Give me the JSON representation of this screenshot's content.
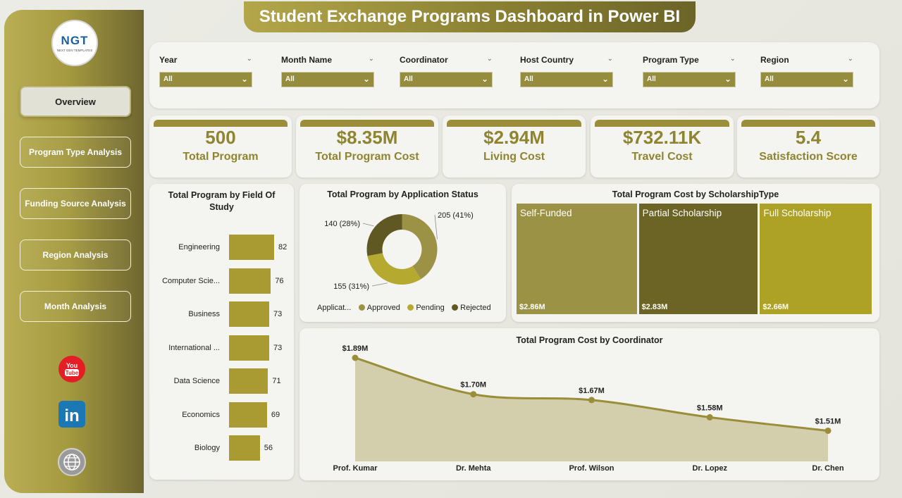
{
  "title": "Student Exchange Programs Dashboard in Power BI",
  "logo": {
    "text": "NGT",
    "subtext": "NEXT GEN TEMPLATES"
  },
  "nav": [
    {
      "label": "Overview",
      "active": true
    },
    {
      "label": "Program Type Analysis"
    },
    {
      "label": "Funding Source Analysis"
    },
    {
      "label": "Region Analysis"
    },
    {
      "label": "Month Analysis"
    }
  ],
  "social": [
    {
      "name": "youtube-icon",
      "text": "You Tube",
      "color": "#e31e24"
    },
    {
      "name": "linkedin-icon",
      "text": "in",
      "color": "#1b78b5"
    },
    {
      "name": "website-icon",
      "text": "www",
      "color": "#888888"
    }
  ],
  "filters": [
    {
      "label": "Year",
      "value": "All"
    },
    {
      "label": "Month Name",
      "value": "All"
    },
    {
      "label": "Coordinator",
      "value": "All"
    },
    {
      "label": "Host Country",
      "value": "All"
    },
    {
      "label": "Program Type",
      "value": "All"
    },
    {
      "label": "Region",
      "value": "All"
    }
  ],
  "kpis": [
    {
      "value": "500",
      "label": "Total Program"
    },
    {
      "value": "$8.35M",
      "label": "Total Program Cost"
    },
    {
      "value": "$2.94M",
      "label": "Living Cost"
    },
    {
      "value": "$732.11K",
      "label": "Travel Cost"
    },
    {
      "value": "5.4",
      "label": "Satisfaction Score"
    }
  ],
  "colors": {
    "accent": "#8f8430",
    "bar": "#a99b31",
    "sidebar": "#a59a40"
  },
  "chart_data": [
    {
      "type": "bar",
      "title": "Total Program by Field Of Study",
      "orientation": "horizontal",
      "categories": [
        "Engineering",
        "Computer Scie...",
        "Business",
        "International ...",
        "Data Science",
        "Economics",
        "Biology"
      ],
      "values": [
        82,
        76,
        73,
        73,
        71,
        69,
        56
      ]
    },
    {
      "type": "pie",
      "title": "Total Program by Application Status",
      "legend_title": "Applicat...",
      "categories": [
        "Approved",
        "Pending",
        "Rejected"
      ],
      "values": [
        205,
        155,
        140
      ],
      "labels": [
        "205 (41%)",
        "155 (31%)",
        "140 (28%)"
      ],
      "colors": [
        "#9c9245",
        "#b5a92f",
        "#5f5823"
      ]
    },
    {
      "type": "heatmap",
      "title": "Total Program Cost by ScholarshipType",
      "categories": [
        "Self-Funded",
        "Partial Scholarship",
        "Full Scholarship"
      ],
      "values": [
        2.86,
        2.83,
        2.66
      ],
      "labels": [
        "$2.86M",
        "$2.83M",
        "$2.66M"
      ],
      "colors": [
        "#9c9245",
        "#6b6424",
        "#aea226"
      ]
    },
    {
      "type": "area",
      "title": "Total Program Cost by Coordinator",
      "categories": [
        "Prof. Kumar",
        "Dr. Mehta",
        "Prof. Wilson",
        "Dr. Lopez",
        "Dr. Chen"
      ],
      "values": [
        1.89,
        1.7,
        1.67,
        1.58,
        1.51
      ],
      "labels": [
        "$1.89M",
        "$1.70M",
        "$1.67M",
        "$1.58M",
        "$1.51M"
      ]
    }
  ]
}
